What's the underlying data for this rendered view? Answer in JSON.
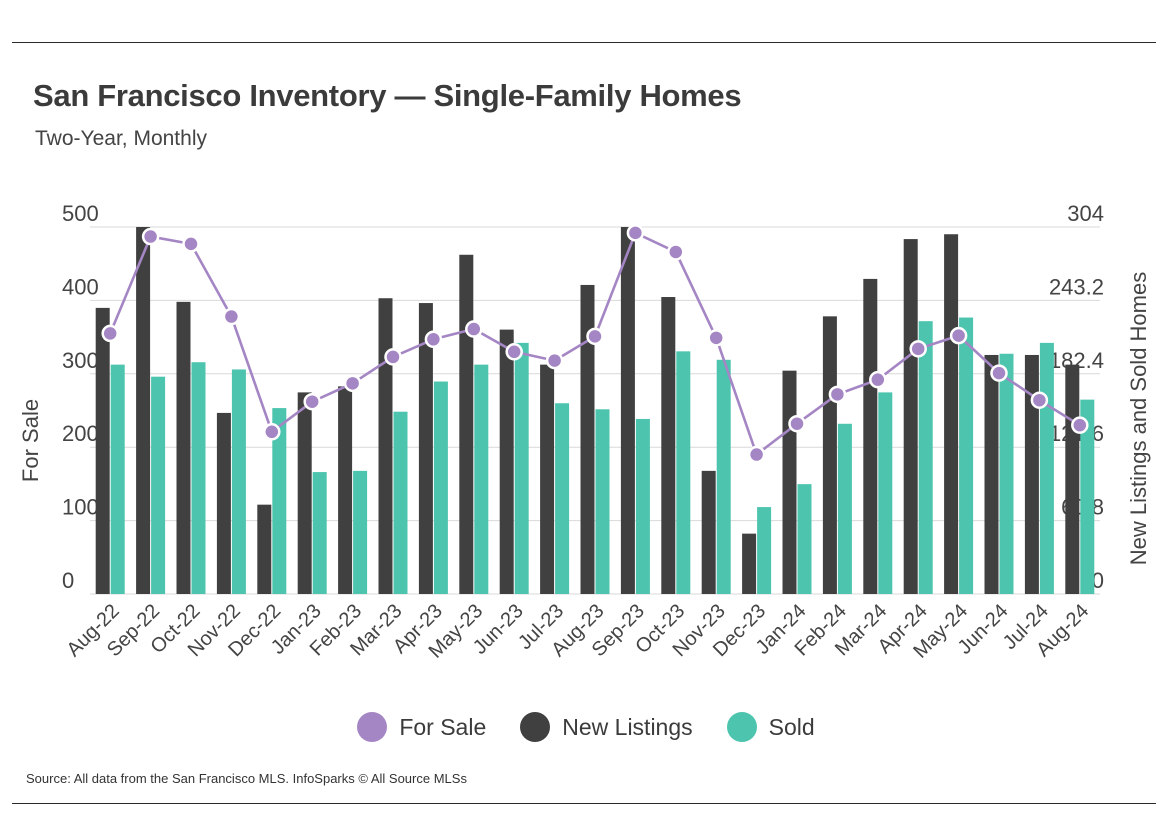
{
  "header": {
    "title": "San Francisco Inventory — Single-Family Homes",
    "subtitle": "Two-Year, Monthly"
  },
  "footer": {
    "source": "Source:  All data from the San Francisco MLS. InfoSparks © All Source MLSs"
  },
  "legend": {
    "items": [
      {
        "label": "For Sale",
        "color": "#a586c4"
      },
      {
        "label": "New Listings",
        "color": "#404040"
      },
      {
        "label": "Sold",
        "color": "#4cc4ae"
      }
    ]
  },
  "chart_data": {
    "type": "bar",
    "categories": [
      "Aug-22",
      "Sep-22",
      "Oct-22",
      "Nov-22",
      "Dec-22",
      "Jan-23",
      "Feb-23",
      "Mar-23",
      "Apr-23",
      "May-23",
      "Jun-23",
      "Jul-23",
      "Aug-23",
      "Sep-23",
      "Oct-23",
      "Nov-23",
      "Dec-23",
      "Jan-24",
      "Feb-24",
      "Mar-24",
      "Apr-24",
      "May-24",
      "Jun-24",
      "Jul-24",
      "Aug-24"
    ],
    "series": [
      {
        "name": "New Listings",
        "kind": "bar",
        "axis": "right",
        "color": "#404040",
        "values": [
          237,
          304,
          242,
          150,
          74,
          167,
          172,
          245,
          241,
          281,
          219,
          190,
          256,
          304,
          246,
          102,
          50,
          185,
          230,
          261,
          294,
          298,
          198,
          198,
          190
        ]
      },
      {
        "name": "Sold",
        "kind": "bar",
        "axis": "right",
        "color": "#4cc4ae",
        "values": [
          190,
          180,
          192,
          186,
          154,
          101,
          102,
          151,
          176,
          190,
          208,
          158,
          153,
          145,
          201,
          194,
          72,
          91,
          141,
          167,
          226,
          229,
          199,
          208,
          161
        ]
      },
      {
        "name": "For Sale",
        "kind": "line",
        "axis": "left",
        "color": "#a586c4",
        "values": [
          355,
          487,
          477,
          378,
          221,
          262,
          287,
          323,
          347,
          361,
          330,
          318,
          351,
          492,
          466,
          349,
          190,
          232,
          272,
          292,
          334,
          352,
          301,
          264,
          230
        ]
      }
    ],
    "ylabel": "For Sale",
    "y2label": "New Listings and Sold Homes",
    "ylim": [
      0,
      500
    ],
    "y2lim": [
      0,
      304
    ],
    "yticks": [
      "0",
      "100",
      "200",
      "300",
      "400",
      "500"
    ],
    "y2ticks": [
      "0",
      "60.8",
      "121.6",
      "182.4",
      "243.2",
      "304"
    ],
    "grid": true,
    "legend_position": "bottom"
  }
}
